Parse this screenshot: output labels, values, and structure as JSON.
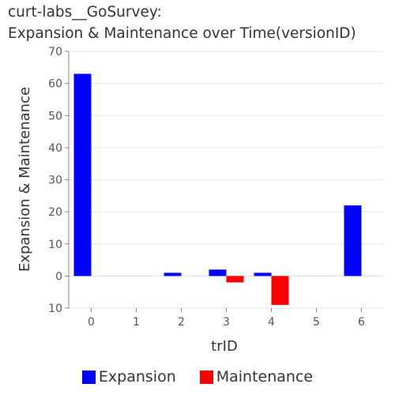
{
  "chart_data": {
    "type": "bar",
    "title_lines": [
      "curt-labs__GoSurvey:",
      "Expansion & Maintenance over Time(versionID)"
    ],
    "xlabel": "trID",
    "ylabel": "Expansion & Maintenance",
    "categories": [
      "0",
      "1",
      "2",
      "3",
      "4",
      "5",
      "6"
    ],
    "ylim": [
      -10,
      70
    ],
    "y_ticks": [
      -10,
      0,
      10,
      20,
      30,
      40,
      50,
      60,
      70
    ],
    "y_tick_labels": [
      "10",
      "0",
      "10",
      "20",
      "30",
      "40",
      "50",
      "60",
      "70"
    ],
    "grid": "horizontal",
    "legend_position": "bottom",
    "series": [
      {
        "name": "Expansion",
        "color": "#0000ff",
        "values": [
          63,
          0,
          1,
          2,
          1,
          0,
          22
        ]
      },
      {
        "name": "Maintenance",
        "color": "#ff0000",
        "values": [
          0,
          0,
          0,
          -2,
          -9,
          0,
          0
        ]
      }
    ]
  }
}
